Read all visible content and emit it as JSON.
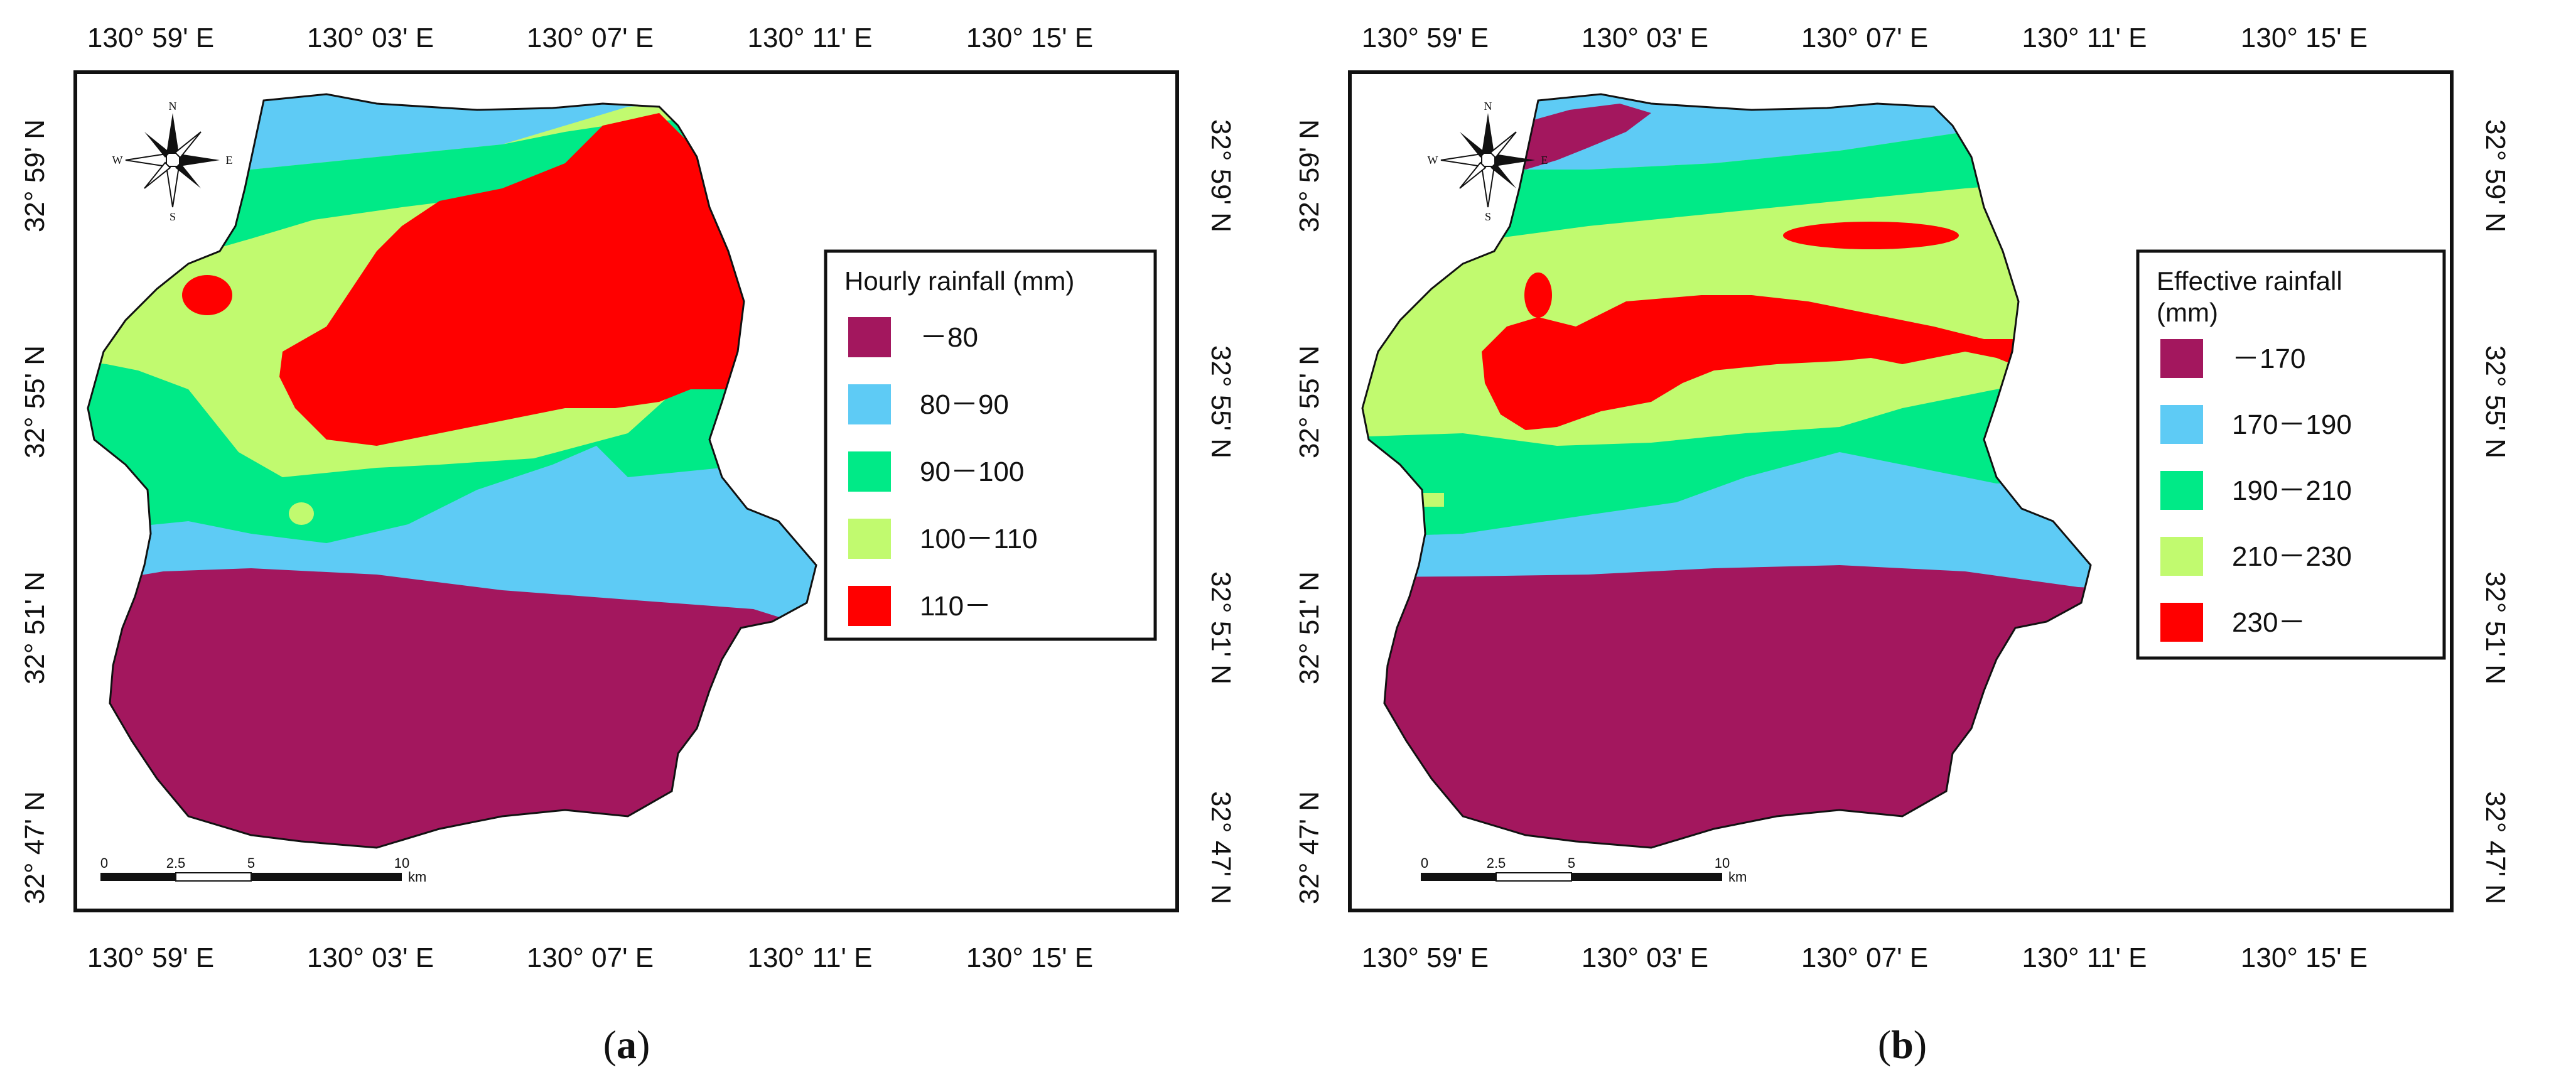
{
  "lon_ticks": [
    "130° 59' E",
    "130° 03' E",
    "130° 07' E",
    "130° 11' E",
    "130° 15' E"
  ],
  "lat_ticks": [
    "32° 59' N",
    "32° 55' N",
    "32° 51' N",
    "32° 47' N"
  ],
  "compass": {
    "n": "N",
    "s": "S",
    "e": "E",
    "w": "W"
  },
  "scale_bar": {
    "labels": [
      "0",
      "2.5",
      "5",
      "10"
    ],
    "unit": "km"
  },
  "panels": [
    {
      "caption_letter": "a",
      "legend_title_line1": "Hourly rainfall (mm)",
      "legend_title_line2": "",
      "legend": [
        {
          "label": "－80",
          "color": "#a3175e"
        },
        {
          "label": "80－90",
          "color": "#5ecbf5"
        },
        {
          "label": "90－100",
          "color": "#00ea87"
        },
        {
          "label": "100－110",
          "color": "#c1fa6f"
        },
        {
          "label": "110－",
          "color": "#ff0000"
        }
      ]
    },
    {
      "caption_letter": "b",
      "legend_title_line1": "Effective rainfall",
      "legend_title_line2": "(mm)",
      "legend": [
        {
          "label": "－170",
          "color": "#a3175e"
        },
        {
          "label": "170－190",
          "color": "#5ecbf5"
        },
        {
          "label": "190－210",
          "color": "#00ea87"
        },
        {
          "label": "210－230",
          "color": "#c1fa6f"
        },
        {
          "label": "230－",
          "color": "#ff0000"
        }
      ]
    }
  ]
}
